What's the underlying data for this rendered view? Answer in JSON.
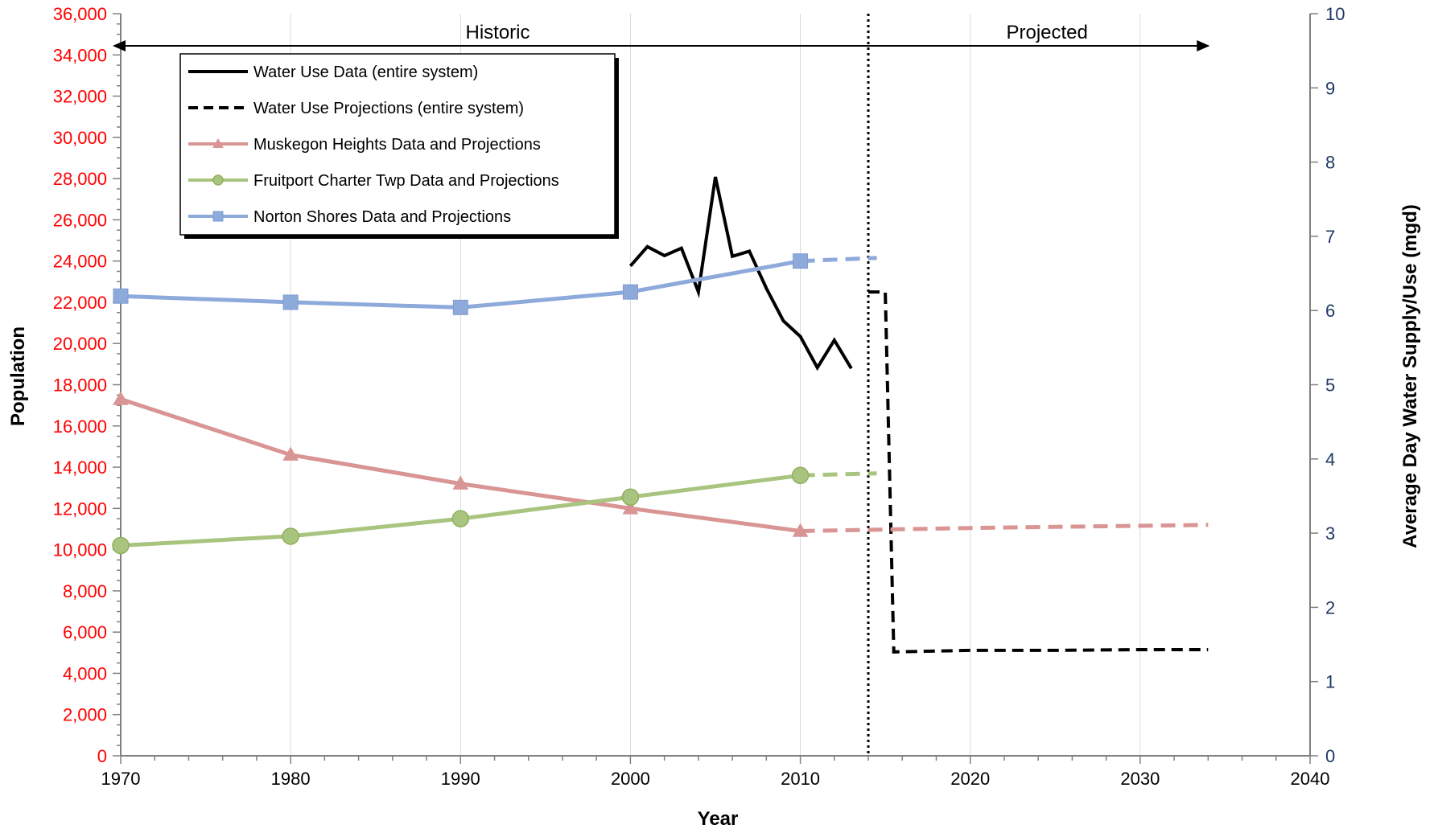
{
  "chart_data": {
    "type": "line",
    "xlabel": "Year",
    "ylabel": "Population",
    "y2label": "Average Day Water Supply/Use (mgd)",
    "xlim": [
      1970,
      2040
    ],
    "ylim": [
      0,
      36000
    ],
    "y2lim": [
      0,
      10
    ],
    "x_ticks": [
      "1970",
      "1980",
      "1990",
      "2000",
      "2010",
      "2020",
      "2030",
      "2040"
    ],
    "y_ticks": [
      "0",
      "2,000",
      "4,000",
      "6,000",
      "8,000",
      "10,000",
      "12,000",
      "14,000",
      "16,000",
      "18,000",
      "20,000",
      "22,000",
      "24,000",
      "26,000",
      "28,000",
      "30,000",
      "32,000",
      "34,000",
      "36,000"
    ],
    "y2_ticks": [
      "0",
      "1",
      "2",
      "3",
      "4",
      "5",
      "6",
      "7",
      "8",
      "9",
      "10"
    ],
    "grid": "vertical",
    "legend_position": "top-left",
    "periods": [
      {
        "label": "Historic",
        "from": 1970,
        "to": 2014
      },
      {
        "label": "Projected",
        "from": 2014,
        "to": 2034
      }
    ],
    "divider_year": 2014,
    "colors": {
      "water": "#000000",
      "muskegon": "#d99594",
      "fruitport": "#a9c47f",
      "norton": "#8eaadb",
      "left_axis": "#ff0000",
      "right_axis": "#1f3864"
    },
    "series": [
      {
        "name": "Water Use Data (entire system)",
        "axis": "right",
        "style": "solid",
        "marker": "none",
        "color": "#000000",
        "points": [
          [
            2000,
            6.6
          ],
          [
            2001,
            6.86
          ],
          [
            2002,
            6.74
          ],
          [
            2003,
            6.84
          ],
          [
            2004,
            6.25
          ],
          [
            2005,
            7.8
          ],
          [
            2006,
            6.73
          ],
          [
            2007,
            6.8
          ],
          [
            2008,
            6.3
          ],
          [
            2009,
            5.86
          ],
          [
            2010,
            5.65
          ],
          [
            2011,
            5.23
          ],
          [
            2012,
            5.6
          ],
          [
            2013,
            5.22
          ]
        ]
      },
      {
        "name": "Water Use Projections (entire system)",
        "axis": "right",
        "style": "dashed",
        "marker": "none",
        "color": "#000000",
        "points": [
          [
            2014,
            6.25
          ],
          [
            2015,
            6.25
          ],
          [
            2015.5,
            1.4
          ],
          [
            2020,
            1.42
          ],
          [
            2025,
            1.42
          ],
          [
            2030,
            1.43
          ],
          [
            2034,
            1.43
          ]
        ]
      },
      {
        "name": "Muskegon Heights Data and Projections",
        "axis": "left",
        "style": "solid",
        "marker": "triangle",
        "color": "#d99594",
        "points": [
          [
            1970,
            17300
          ],
          [
            1980,
            14600
          ],
          [
            1990,
            13200
          ],
          [
            2000,
            12000
          ],
          [
            2010,
            10900
          ]
        ],
        "projection": [
          [
            2010,
            10900
          ],
          [
            2020,
            11050
          ],
          [
            2034,
            11200
          ]
        ]
      },
      {
        "name": "Fruitport Charter Twp Data and Projections",
        "axis": "left",
        "style": "solid",
        "marker": "circle",
        "color": "#a9c47f",
        "points": [
          [
            1970,
            10200
          ],
          [
            1980,
            10650
          ],
          [
            1990,
            11500
          ],
          [
            2000,
            12550
          ],
          [
            2010,
            13600
          ]
        ],
        "projection": [
          [
            2010,
            13600
          ],
          [
            2014.5,
            13700
          ]
        ]
      },
      {
        "name": "Norton Shores Data and Projections",
        "axis": "left",
        "style": "solid",
        "marker": "square",
        "color": "#8eaadb",
        "points": [
          [
            1970,
            22300
          ],
          [
            1980,
            22000
          ],
          [
            1990,
            21750
          ],
          [
            2000,
            22500
          ],
          [
            2010,
            24000
          ]
        ],
        "projection": [
          [
            2010,
            24000
          ],
          [
            2014.5,
            24150
          ]
        ]
      }
    ]
  }
}
